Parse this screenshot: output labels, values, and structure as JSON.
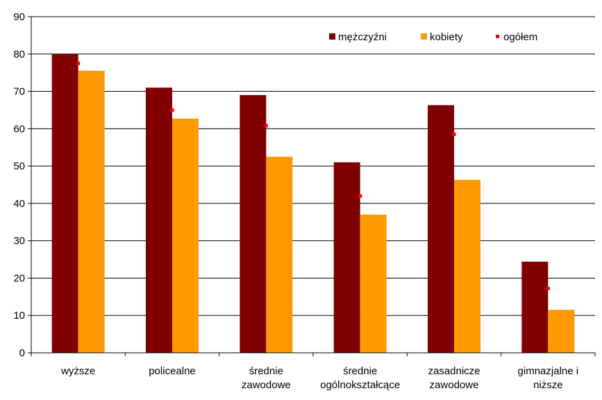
{
  "chart_data": {
    "type": "bar",
    "title": "",
    "xlabel": "",
    "ylabel": "",
    "ylim": [
      0,
      90
    ],
    "yticks": [
      0,
      10,
      20,
      30,
      40,
      50,
      60,
      70,
      80,
      90
    ],
    "grid": true,
    "legend_position": "top-right",
    "categories": [
      [
        "wyższe"
      ],
      [
        "policealne"
      ],
      [
        "średnie",
        "zawodowe"
      ],
      [
        "średnie",
        "ogólnokształcące"
      ],
      [
        "zasadnicze",
        "zawodowe"
      ],
      [
        "gimnazjalne i",
        "niższe"
      ]
    ],
    "series": [
      {
        "name": "mężczyźni",
        "kind": "bar",
        "color": "#800000",
        "values": [
          80,
          71,
          69,
          51,
          66.3,
          24.4
        ]
      },
      {
        "name": "kobiety",
        "kind": "bar",
        "color": "#FF9900",
        "values": [
          75.5,
          62.7,
          52.5,
          37,
          46.3,
          11.5
        ]
      },
      {
        "name": "ogółem",
        "kind": "marker",
        "color": "#FF0000",
        "values": [
          77.5,
          65,
          60.8,
          42,
          58.5,
          17.2
        ]
      }
    ]
  }
}
